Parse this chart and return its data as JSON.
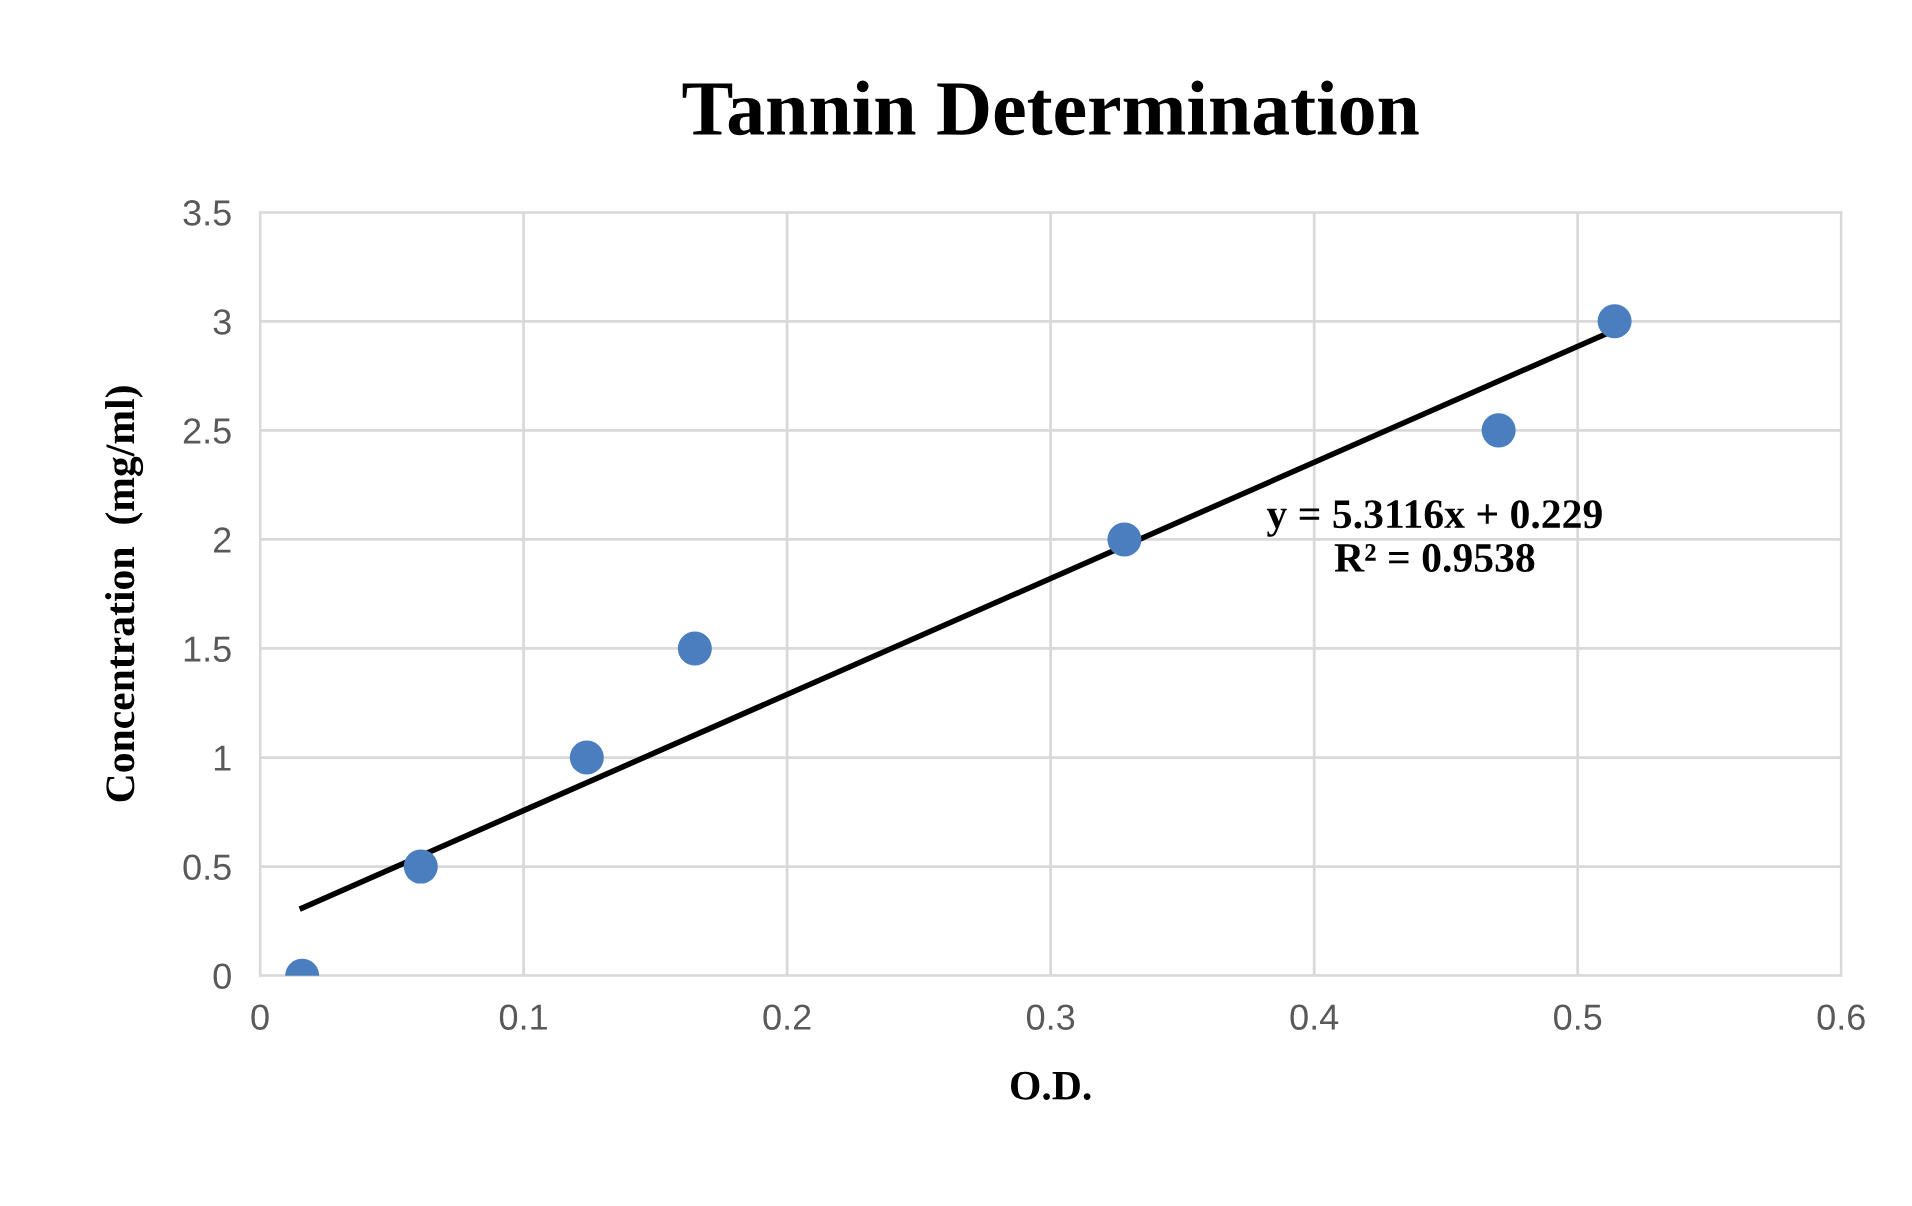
{
  "chart_data": {
    "type": "scatter",
    "title": "Tannin Determination",
    "xlabel": "O.D.",
    "ylabel": "Concentration  (mg/ml)",
    "series": [
      {
        "color": "#4a7ebf",
        "marker": "circle",
        "x": [
          0.016,
          0.061,
          0.124,
          0.165,
          0.328,
          0.47,
          0.514
        ],
        "values": [
          0,
          0.5,
          1,
          1.5,
          2,
          2.5,
          3
        ]
      },
      {
        "type": "line",
        "color": "#000000",
        "line_style": "solid",
        "marker": "none",
        "x": [
          0.016,
          0.514
        ],
        "values": [
          0.31,
          2.96
        ]
      }
    ],
    "annotations": [
      "y = 5.3116x + 0.229\nR² = 0.9538"
    ],
    "xlim": [
      0,
      0.6
    ],
    "xticks": [
      0,
      0.1,
      0.2,
      0.3,
      0.4,
      0.5,
      0.6
    ],
    "ylim": [
      0,
      3.5
    ],
    "yticks": [
      0,
      0.5,
      1,
      1.5,
      2,
      2.5,
      3,
      3.5
    ],
    "grid": true,
    "legend": false
  }
}
